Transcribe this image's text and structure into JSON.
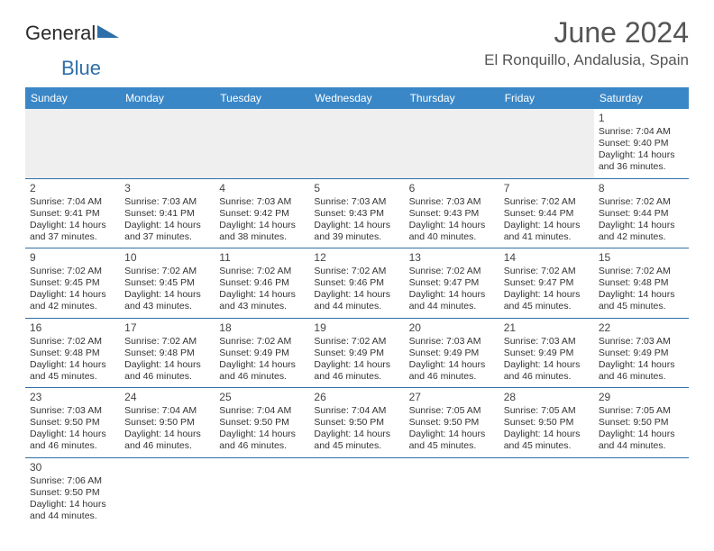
{
  "brand": {
    "part1": "General",
    "part2": "Blue",
    "color1": "#2b2b2b",
    "color2": "#2f6fa9"
  },
  "title": "June 2024",
  "location": "El Ronquillo, Andalusia, Spain",
  "colors": {
    "header_bg": "#3a87c7",
    "header_text": "#ffffff",
    "border": "#2f6fa9",
    "empty_bg": "#efefef",
    "text": "#333333",
    "title_color": "#555555"
  },
  "day_headers": [
    "Sunday",
    "Monday",
    "Tuesday",
    "Wednesday",
    "Thursday",
    "Friday",
    "Saturday"
  ],
  "weeks": [
    [
      null,
      null,
      null,
      null,
      null,
      null,
      {
        "n": "1",
        "sr": "7:04 AM",
        "ss": "9:40 PM",
        "dl": "14 hours and 36 minutes."
      }
    ],
    [
      {
        "n": "2",
        "sr": "7:04 AM",
        "ss": "9:41 PM",
        "dl": "14 hours and 37 minutes."
      },
      {
        "n": "3",
        "sr": "7:03 AM",
        "ss": "9:41 PM",
        "dl": "14 hours and 37 minutes."
      },
      {
        "n": "4",
        "sr": "7:03 AM",
        "ss": "9:42 PM",
        "dl": "14 hours and 38 minutes."
      },
      {
        "n": "5",
        "sr": "7:03 AM",
        "ss": "9:43 PM",
        "dl": "14 hours and 39 minutes."
      },
      {
        "n": "6",
        "sr": "7:03 AM",
        "ss": "9:43 PM",
        "dl": "14 hours and 40 minutes."
      },
      {
        "n": "7",
        "sr": "7:02 AM",
        "ss": "9:44 PM",
        "dl": "14 hours and 41 minutes."
      },
      {
        "n": "8",
        "sr": "7:02 AM",
        "ss": "9:44 PM",
        "dl": "14 hours and 42 minutes."
      }
    ],
    [
      {
        "n": "9",
        "sr": "7:02 AM",
        "ss": "9:45 PM",
        "dl": "14 hours and 42 minutes."
      },
      {
        "n": "10",
        "sr": "7:02 AM",
        "ss": "9:45 PM",
        "dl": "14 hours and 43 minutes."
      },
      {
        "n": "11",
        "sr": "7:02 AM",
        "ss": "9:46 PM",
        "dl": "14 hours and 43 minutes."
      },
      {
        "n": "12",
        "sr": "7:02 AM",
        "ss": "9:46 PM",
        "dl": "14 hours and 44 minutes."
      },
      {
        "n": "13",
        "sr": "7:02 AM",
        "ss": "9:47 PM",
        "dl": "14 hours and 44 minutes."
      },
      {
        "n": "14",
        "sr": "7:02 AM",
        "ss": "9:47 PM",
        "dl": "14 hours and 45 minutes."
      },
      {
        "n": "15",
        "sr": "7:02 AM",
        "ss": "9:48 PM",
        "dl": "14 hours and 45 minutes."
      }
    ],
    [
      {
        "n": "16",
        "sr": "7:02 AM",
        "ss": "9:48 PM",
        "dl": "14 hours and 45 minutes."
      },
      {
        "n": "17",
        "sr": "7:02 AM",
        "ss": "9:48 PM",
        "dl": "14 hours and 46 minutes."
      },
      {
        "n": "18",
        "sr": "7:02 AM",
        "ss": "9:49 PM",
        "dl": "14 hours and 46 minutes."
      },
      {
        "n": "19",
        "sr": "7:02 AM",
        "ss": "9:49 PM",
        "dl": "14 hours and 46 minutes."
      },
      {
        "n": "20",
        "sr": "7:03 AM",
        "ss": "9:49 PM",
        "dl": "14 hours and 46 minutes."
      },
      {
        "n": "21",
        "sr": "7:03 AM",
        "ss": "9:49 PM",
        "dl": "14 hours and 46 minutes."
      },
      {
        "n": "22",
        "sr": "7:03 AM",
        "ss": "9:49 PM",
        "dl": "14 hours and 46 minutes."
      }
    ],
    [
      {
        "n": "23",
        "sr": "7:03 AM",
        "ss": "9:50 PM",
        "dl": "14 hours and 46 minutes."
      },
      {
        "n": "24",
        "sr": "7:04 AM",
        "ss": "9:50 PM",
        "dl": "14 hours and 46 minutes."
      },
      {
        "n": "25",
        "sr": "7:04 AM",
        "ss": "9:50 PM",
        "dl": "14 hours and 46 minutes."
      },
      {
        "n": "26",
        "sr": "7:04 AM",
        "ss": "9:50 PM",
        "dl": "14 hours and 45 minutes."
      },
      {
        "n": "27",
        "sr": "7:05 AM",
        "ss": "9:50 PM",
        "dl": "14 hours and 45 minutes."
      },
      {
        "n": "28",
        "sr": "7:05 AM",
        "ss": "9:50 PM",
        "dl": "14 hours and 45 minutes."
      },
      {
        "n": "29",
        "sr": "7:05 AM",
        "ss": "9:50 PM",
        "dl": "14 hours and 44 minutes."
      }
    ],
    [
      {
        "n": "30",
        "sr": "7:06 AM",
        "ss": "9:50 PM",
        "dl": "14 hours and 44 minutes."
      },
      null,
      null,
      null,
      null,
      null,
      null
    ]
  ],
  "labels": {
    "sunrise": "Sunrise:",
    "sunset": "Sunset:",
    "daylight": "Daylight:"
  }
}
